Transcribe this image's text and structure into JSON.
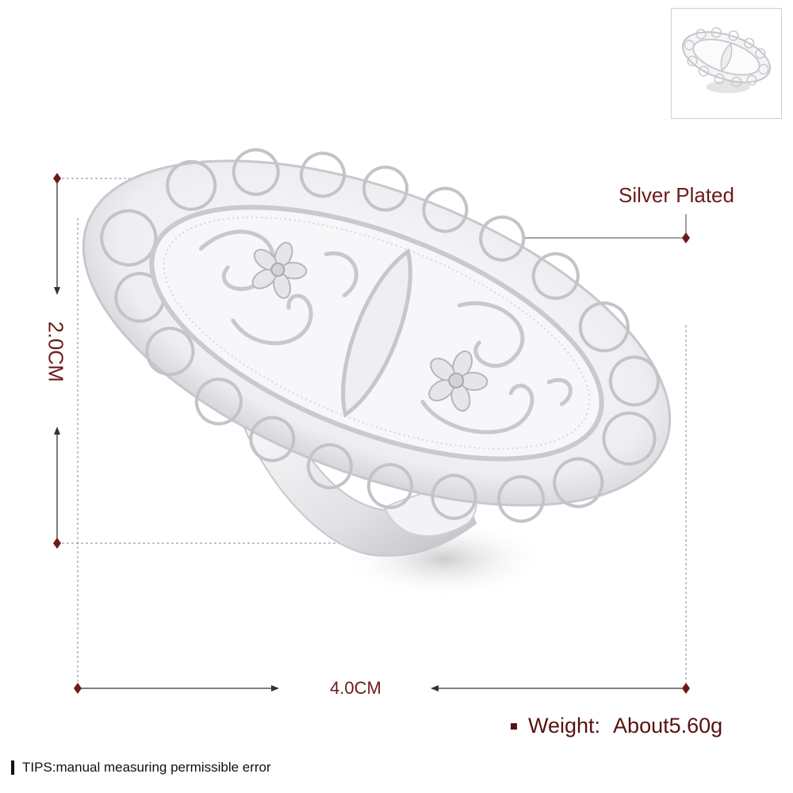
{
  "product": {
    "material_label": "Silver Plated",
    "width_label": "4.0CM",
    "height_label": "2.0CM",
    "weight_key": "Weight:",
    "weight_value": "About5.60g",
    "tips": "TIPS:manual measuring permissible error"
  },
  "colors": {
    "accent": "#6b1a1a",
    "guide": "#8a8a8a",
    "metal_light": "#f4f4f6",
    "metal_dark": "#c8c8cc"
  },
  "icons": {
    "ring": "ring-illustration",
    "thumbnail": "ring-thumbnail"
  }
}
